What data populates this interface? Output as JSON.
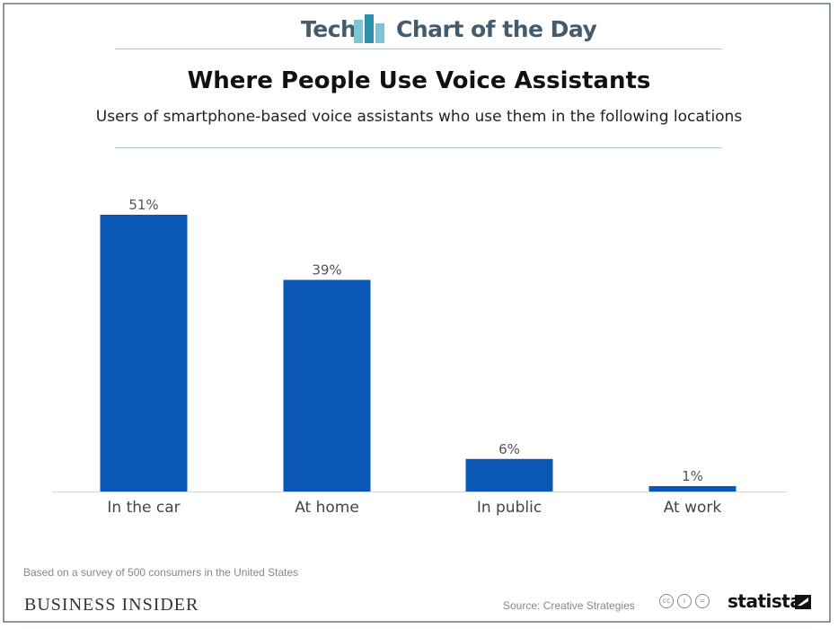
{
  "banner": {
    "left_word": "Tech",
    "right_word": "Chart of the Day"
  },
  "footer": {
    "footnote": "Based on a survey of 500 consumers in the United States",
    "publisher": "BUSINESS INSIDER",
    "source": "Source: Creative Strategies",
    "brand": "statista",
    "license_icons": [
      "cc",
      "i",
      "="
    ]
  },
  "colors": {
    "bar": "#0b57b5",
    "banner_text": "#455a6b",
    "logo_light": "#7ec4d4",
    "logo_dark": "#2e8fa8"
  },
  "chart_data": {
    "type": "bar",
    "title": "Where People Use Voice Assistants",
    "subtitle": "Users of smartphone-based voice assistants who use them in the following locations",
    "categories": [
      "In the car",
      "At home",
      "In public",
      "At work"
    ],
    "values": [
      51,
      39,
      6,
      1
    ],
    "value_labels": [
      "51%",
      "39%",
      "6%",
      "1%"
    ],
    "unit": "%",
    "ylim": [
      0,
      51
    ],
    "grid": false,
    "legend": "none"
  }
}
